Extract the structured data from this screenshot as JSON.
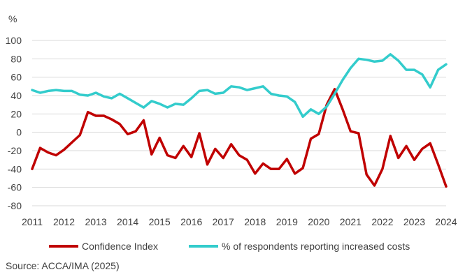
{
  "chart_data": {
    "type": "line",
    "ylabel": "%",
    "ylim": [
      -80,
      100
    ],
    "yticks": [
      -80,
      -60,
      -40,
      -20,
      0,
      20,
      40,
      60,
      80,
      100
    ],
    "xlim": [
      2011,
      2024
    ],
    "xticks": [
      "2011",
      "2012",
      "2013",
      "2014",
      "2015",
      "2016",
      "2017",
      "2018",
      "2019",
      "2020",
      "2021",
      "2022",
      "2023",
      "2024"
    ],
    "grid": "horizontal",
    "legend": "bottom",
    "series": [
      {
        "name": "Confidence Index",
        "color": "#c00000",
        "points": [
          [
            2011.0,
            -40
          ],
          [
            2011.25,
            -17
          ],
          [
            2011.5,
            -22
          ],
          [
            2011.75,
            -25
          ],
          [
            2012.0,
            -19
          ],
          [
            2012.25,
            -11
          ],
          [
            2012.5,
            -3
          ],
          [
            2012.75,
            22
          ],
          [
            2013.0,
            18
          ],
          [
            2013.25,
            18
          ],
          [
            2013.5,
            14
          ],
          [
            2013.75,
            9
          ],
          [
            2014.0,
            -2
          ],
          [
            2014.25,
            1
          ],
          [
            2014.5,
            13
          ],
          [
            2014.75,
            -24
          ],
          [
            2015.0,
            -6
          ],
          [
            2015.25,
            -25
          ],
          [
            2015.5,
            -28
          ],
          [
            2015.75,
            -15
          ],
          [
            2016.0,
            -27
          ],
          [
            2016.25,
            -1
          ],
          [
            2016.5,
            -35
          ],
          [
            2016.75,
            -18
          ],
          [
            2017.0,
            -28
          ],
          [
            2017.25,
            -13
          ],
          [
            2017.5,
            -25
          ],
          [
            2017.75,
            -30
          ],
          [
            2018.0,
            -45
          ],
          [
            2018.25,
            -34
          ],
          [
            2018.5,
            -40
          ],
          [
            2018.75,
            -40
          ],
          [
            2019.0,
            -29
          ],
          [
            2019.25,
            -45
          ],
          [
            2019.5,
            -39
          ],
          [
            2019.75,
            -7
          ],
          [
            2020.0,
            -2
          ],
          [
            2020.25,
            30
          ],
          [
            2020.5,
            47
          ],
          [
            2020.75,
            25
          ],
          [
            2021.0,
            1
          ],
          [
            2021.25,
            -1
          ],
          [
            2021.5,
            -46
          ],
          [
            2021.75,
            -58
          ],
          [
            2022.0,
            -40
          ],
          [
            2022.25,
            -4
          ],
          [
            2022.5,
            -28
          ],
          [
            2022.75,
            -15
          ],
          [
            2023.0,
            -30
          ],
          [
            2023.25,
            -18
          ],
          [
            2023.5,
            -12
          ],
          [
            2023.75,
            -35
          ],
          [
            2024.0,
            -59
          ]
        ]
      },
      {
        "name": "% of respondents reporting increased costs",
        "color": "#33cccc",
        "points": [
          [
            2011.0,
            46
          ],
          [
            2011.25,
            43
          ],
          [
            2011.5,
            45
          ],
          [
            2011.75,
            46
          ],
          [
            2012.0,
            45
          ],
          [
            2012.25,
            45
          ],
          [
            2012.5,
            41
          ],
          [
            2012.75,
            40
          ],
          [
            2013.0,
            43
          ],
          [
            2013.25,
            39
          ],
          [
            2013.5,
            37
          ],
          [
            2013.75,
            42
          ],
          [
            2014.0,
            37
          ],
          [
            2014.25,
            32
          ],
          [
            2014.5,
            27
          ],
          [
            2014.75,
            34
          ],
          [
            2015.0,
            31
          ],
          [
            2015.25,
            27
          ],
          [
            2015.5,
            31
          ],
          [
            2015.75,
            30
          ],
          [
            2016.0,
            37
          ],
          [
            2016.25,
            45
          ],
          [
            2016.5,
            46
          ],
          [
            2016.75,
            42
          ],
          [
            2017.0,
            43
          ],
          [
            2017.25,
            50
          ],
          [
            2017.5,
            49
          ],
          [
            2017.75,
            46
          ],
          [
            2018.0,
            48
          ],
          [
            2018.25,
            50
          ],
          [
            2018.5,
            42
          ],
          [
            2018.75,
            40
          ],
          [
            2019.0,
            39
          ],
          [
            2019.25,
            33
          ],
          [
            2019.5,
            17
          ],
          [
            2019.75,
            25
          ],
          [
            2020.0,
            20
          ],
          [
            2020.25,
            28
          ],
          [
            2020.5,
            42
          ],
          [
            2020.75,
            57
          ],
          [
            2021.0,
            70
          ],
          [
            2021.25,
            80
          ],
          [
            2021.5,
            79
          ],
          [
            2021.75,
            77
          ],
          [
            2022.0,
            78
          ],
          [
            2022.25,
            85
          ],
          [
            2022.5,
            78
          ],
          [
            2022.75,
            68
          ],
          [
            2023.0,
            68
          ],
          [
            2023.25,
            63
          ],
          [
            2023.5,
            49
          ],
          [
            2023.75,
            68
          ],
          [
            2024.0,
            74
          ]
        ]
      }
    ]
  },
  "source": "Source: ACCA/IMA  (2025)"
}
